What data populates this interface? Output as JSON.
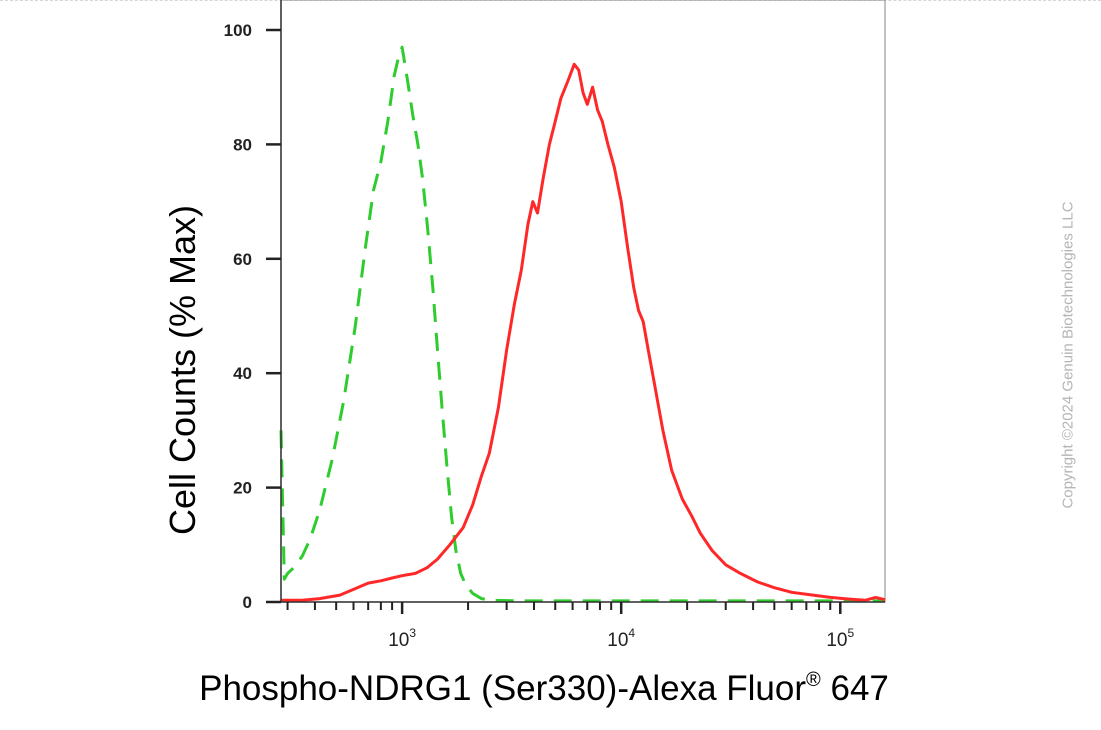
{
  "chart_data": {
    "type": "line",
    "xlabel": "Phospho-NDRG1 (Ser330)-Alexa Fluor",
    "xlabel_superscript": "®",
    "xlabel_suffix": " 647",
    "ylabel": "Cell Counts (% Max)",
    "xscale": "log",
    "xlim": [
      280,
      160000
    ],
    "ylim": [
      0,
      100
    ],
    "yticks": [
      0,
      20,
      40,
      60,
      80,
      100
    ],
    "xticks_major": [
      {
        "base": "10",
        "exp": "3",
        "value": 1000
      },
      {
        "base": "10",
        "exp": "4",
        "value": 10000
      },
      {
        "base": "10",
        "exp": "5",
        "value": 100000
      }
    ],
    "grid": false,
    "legend": "none",
    "series": [
      {
        "color": "#2fcc2f",
        "style": "dashed",
        "points": [
          [
            280,
            30
          ],
          [
            290,
            4
          ],
          [
            300,
            5
          ],
          [
            320,
            6
          ],
          [
            350,
            8
          ],
          [
            380,
            11
          ],
          [
            420,
            16
          ],
          [
            480,
            25
          ],
          [
            540,
            35
          ],
          [
            610,
            48
          ],
          [
            680,
            62
          ],
          [
            740,
            72
          ],
          [
            800,
            77
          ],
          [
            860,
            84
          ],
          [
            920,
            92
          ],
          [
            960,
            95
          ],
          [
            1000,
            97
          ],
          [
            1060,
            91
          ],
          [
            1120,
            85
          ],
          [
            1180,
            80
          ],
          [
            1240,
            74
          ],
          [
            1310,
            65
          ],
          [
            1380,
            55
          ],
          [
            1450,
            44
          ],
          [
            1520,
            34
          ],
          [
            1600,
            24
          ],
          [
            1680,
            15
          ],
          [
            1760,
            9
          ],
          [
            1850,
            5
          ],
          [
            1950,
            3
          ],
          [
            2100,
            1.5
          ],
          [
            2300,
            0.6
          ],
          [
            2600,
            0.3
          ],
          [
            3500,
            0.2
          ],
          [
            6000,
            0.2
          ],
          [
            12000,
            0.2
          ],
          [
            25000,
            0.2
          ],
          [
            50000,
            0.2
          ],
          [
            100000,
            0.2
          ],
          [
            160000,
            0.2
          ]
        ]
      },
      {
        "color": "#ff2828",
        "style": "solid",
        "points": [
          [
            280,
            0.3
          ],
          [
            350,
            0.3
          ],
          [
            420,
            0.6
          ],
          [
            520,
            1.2
          ],
          [
            600,
            2.2
          ],
          [
            700,
            3.3
          ],
          [
            800,
            3.7
          ],
          [
            900,
            4.2
          ],
          [
            1000,
            4.6
          ],
          [
            1150,
            5
          ],
          [
            1300,
            6
          ],
          [
            1450,
            7.5
          ],
          [
            1650,
            10
          ],
          [
            1900,
            13
          ],
          [
            2100,
            17
          ],
          [
            2300,
            22
          ],
          [
            2500,
            26
          ],
          [
            2750,
            34
          ],
          [
            3000,
            44
          ],
          [
            3250,
            52
          ],
          [
            3500,
            58
          ],
          [
            3750,
            66
          ],
          [
            3950,
            70
          ],
          [
            4150,
            68
          ],
          [
            4400,
            74
          ],
          [
            4700,
            80
          ],
          [
            5000,
            84
          ],
          [
            5300,
            88
          ],
          [
            5700,
            91
          ],
          [
            6100,
            94
          ],
          [
            6400,
            93
          ],
          [
            6700,
            89
          ],
          [
            7000,
            87
          ],
          [
            7400,
            90
          ],
          [
            7800,
            86
          ],
          [
            8200,
            84
          ],
          [
            8700,
            80
          ],
          [
            9300,
            76
          ],
          [
            10000,
            70
          ],
          [
            10700,
            62
          ],
          [
            11400,
            55
          ],
          [
            12000,
            51
          ],
          [
            12600,
            49
          ],
          [
            13300,
            44
          ],
          [
            14200,
            38
          ],
          [
            15500,
            30
          ],
          [
            17000,
            23
          ],
          [
            19000,
            18
          ],
          [
            21000,
            15
          ],
          [
            23000,
            12
          ],
          [
            26000,
            9
          ],
          [
            30000,
            6.5
          ],
          [
            35000,
            5
          ],
          [
            42000,
            3.5
          ],
          [
            50000,
            2.5
          ],
          [
            60000,
            1.7
          ],
          [
            75000,
            1.2
          ],
          [
            90000,
            0.8
          ],
          [
            110000,
            0.5
          ],
          [
            130000,
            0.3
          ],
          [
            145000,
            0.8
          ],
          [
            160000,
            0.4
          ]
        ]
      }
    ]
  },
  "copyright": "Copyright ©2024 Genuin Biotechnologies LLC"
}
